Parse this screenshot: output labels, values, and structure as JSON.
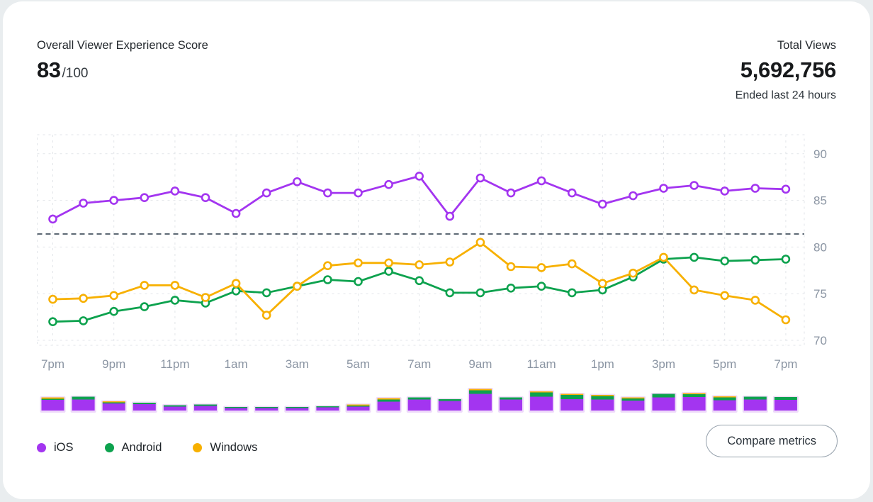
{
  "header": {
    "score_label": "Overall Viewer Experience Score",
    "score_value": "83",
    "score_suffix": "/100",
    "views_label": "Total Views",
    "views_value": "5,692,756",
    "views_sub": "Ended last 24 hours"
  },
  "chart_data": {
    "type": "line",
    "title": "Viewer experience score by platform, hourly, last 24 hours",
    "x": [
      "7pm",
      "8pm",
      "9pm",
      "10pm",
      "11pm",
      "12am",
      "1am",
      "2am",
      "3am",
      "4am",
      "5am",
      "6am",
      "7am",
      "8am",
      "9am",
      "10am",
      "11am",
      "12pm",
      "1pm",
      "2pm",
      "3pm",
      "4pm",
      "5pm",
      "6pm",
      "7pm"
    ],
    "x_tick_labels": [
      "7pm",
      "9pm",
      "11pm",
      "1am",
      "3am",
      "5am",
      "7am",
      "9am",
      "11am",
      "1pm",
      "3pm",
      "5pm",
      "7pm"
    ],
    "y_ticks": [
      70,
      75,
      80,
      85,
      90
    ],
    "ylim": [
      69.5,
      92
    ],
    "grid": "dashed",
    "legend_position": "bottom-left",
    "threshold_line": 81.4,
    "series": [
      {
        "name": "iOS",
        "color": "#a335f0",
        "values": [
          83,
          84.7,
          85,
          85.3,
          86,
          85.3,
          83.6,
          85.8,
          87,
          85.8,
          85.8,
          86.7,
          87.6,
          83.3,
          87.4,
          85.8,
          87.1,
          85.8,
          84.6,
          85.5,
          86.3,
          86.6,
          86,
          86.3,
          86.2
        ]
      },
      {
        "name": "Android",
        "color": "#0da24e",
        "values": [
          72,
          72.1,
          73.1,
          73.6,
          74.3,
          74,
          75.3,
          75.1,
          75.8,
          76.5,
          76.3,
          77.4,
          76.4,
          75.1,
          75.1,
          75.6,
          75.8,
          75.1,
          75.4,
          76.8,
          78.7,
          78.9,
          78.5,
          78.6,
          78.7
        ]
      },
      {
        "name": "Windows",
        "color": "#f7b000",
        "values": [
          74.4,
          74.5,
          74.8,
          75.9,
          75.9,
          74.6,
          76.1,
          72.7,
          75.8,
          78,
          78.3,
          78.3,
          78.1,
          78.4,
          80.5,
          77.9,
          77.8,
          78.2,
          76.1,
          77.2,
          78.9,
          75.4,
          74.8,
          74.3,
          72.2
        ]
      }
    ],
    "views_bars": {
      "unit": "px",
      "ios": [
        15,
        15.5,
        10,
        9,
        5.5,
        6.5,
        3.5,
        3.5,
        3.5,
        4.5,
        5.5,
        12.5,
        15.5,
        13.5,
        23.5,
        15.5,
        19.5,
        16,
        15.5,
        14,
        18.5,
        19,
        14.5,
        15.5,
        15
      ],
      "android": [
        1.5,
        4,
        1.5,
        2,
        2,
        2,
        1.5,
        1.5,
        1.5,
        1.5,
        1.5,
        3,
        3,
        2.5,
        5,
        3,
        6,
        6,
        5,
        3,
        5,
        4,
        4,
        4,
        4
      ],
      "windows": [
        2,
        0,
        1.5,
        0,
        0,
        0,
        0,
        0,
        0,
        0,
        1.5,
        2,
        0,
        0,
        2,
        0,
        1.5,
        1.5,
        1.5,
        1.5,
        0,
        1.5,
        1.5,
        0,
        0
      ]
    },
    "colors": {
      "halo": "#eedafa",
      "grid": "#e2e5e9",
      "threshold": "#5d6974",
      "axis_label": "#8b95a3"
    }
  },
  "legend": {
    "items": [
      {
        "label": "iOS",
        "color": "#a335f0"
      },
      {
        "label": "Android",
        "color": "#0da24e"
      },
      {
        "label": "Windows",
        "color": "#f7b000"
      }
    ]
  },
  "actions": {
    "compare_button_label": "Compare metrics"
  }
}
